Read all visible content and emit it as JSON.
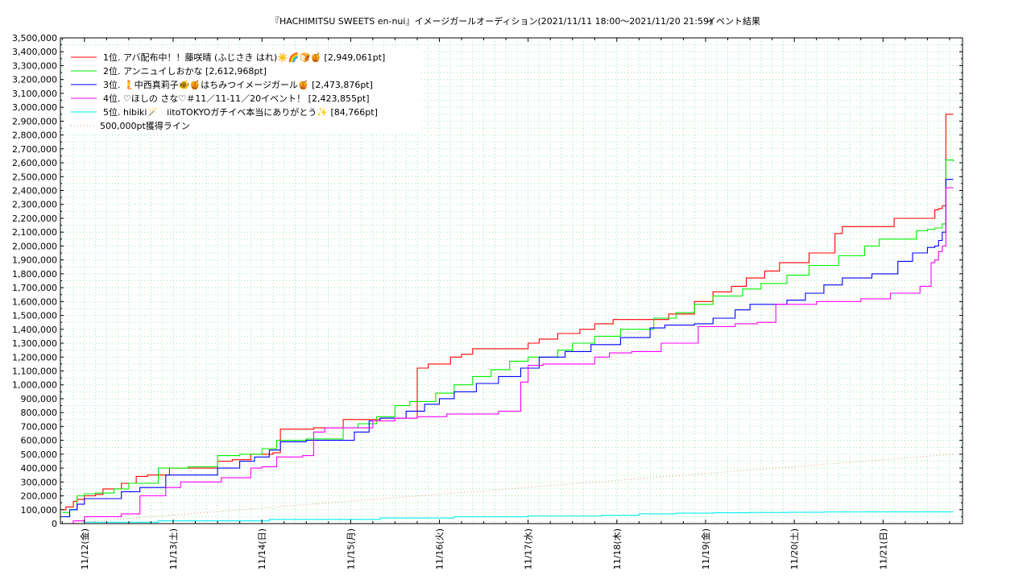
{
  "chart_data": {
    "type": "line",
    "title": "『HACHIMITSU SWEETS en-nui』イメージガールオーディション(2021/11/11 18:00〜2021/11/20 21:59)",
    "subtitle": "イベント結果",
    "xlabel": "",
    "ylabel": "",
    "x_ticks": [
      "11/12(金)",
      "11/13(土)",
      "11/14(日)",
      "11/15(月)",
      "11/16(火)",
      "11/17(水)",
      "11/18(木)",
      "11/19(金)",
      "11/20(土)",
      "11/21(日)"
    ],
    "x_range_hours": [
      -6.5,
      237.5
    ],
    "x_unit": "hours since 11/12 00:00",
    "ylim": [
      0,
      3500000
    ],
    "y_ticks": [
      "0",
      "100,000",
      "200,000",
      "300,000",
      "400,000",
      "500,000",
      "600,000",
      "700,000",
      "800,000",
      "900,000",
      "1,000,000",
      "1,100,000",
      "1,200,000",
      "1,300,000",
      "1,400,000",
      "1,500,000",
      "1,600,000",
      "1,700,000",
      "1,800,000",
      "1,900,000",
      "2,000,000",
      "2,100,000",
      "2,200,000",
      "2,300,000",
      "2,400,000",
      "2,500,000",
      "2,600,000",
      "2,700,000",
      "2,800,000",
      "2,900,000",
      "3,000,000",
      "3,100,000",
      "3,200,000",
      "3,300,000",
      "3,400,000",
      "3,500,000"
    ],
    "grid": true,
    "legend_position": "top-left",
    "series": [
      {
        "name": "1位. アバ配布中！！藤咲晴 (ふじさき はれ)☀️🌈🍞🍯 [2,949,061pt]",
        "color": "#ff0000",
        "style": "solid",
        "x": [
          -6,
          -5,
          -3,
          -2,
          0,
          3,
          5,
          10,
          14,
          17,
          23,
          30,
          36,
          40,
          45,
          51,
          53,
          62,
          70,
          73,
          78,
          80,
          90,
          93,
          99,
          102,
          105,
          120,
          123,
          128,
          134,
          138,
          143,
          150,
          158,
          165,
          170,
          175,
          179,
          184,
          188,
          190,
          196,
          200,
          203,
          205,
          210,
          219,
          225,
          228,
          230,
          231,
          232,
          233,
          235
        ],
        "y": [
          100000,
          120000,
          160000,
          175000,
          200000,
          210000,
          250000,
          290000,
          340000,
          350000,
          400000,
          400000,
          450000,
          460000,
          500000,
          510000,
          680000,
          690000,
          750000,
          750000,
          750000,
          760000,
          1120000,
          1150000,
          1200000,
          1220000,
          1260000,
          1300000,
          1330000,
          1370000,
          1400000,
          1440000,
          1470000,
          1470000,
          1510000,
          1600000,
          1670000,
          1710000,
          1770000,
          1820000,
          1880000,
          1880000,
          1950000,
          1950000,
          2090000,
          2140000,
          2140000,
          2200000,
          2200000,
          2200000,
          2260000,
          2270000,
          2290000,
          2950000,
          2950000
        ]
      },
      {
        "name": "2位. アンニュイしおかな [2,612,968pt]",
        "color": "#00ee00",
        "style": "solid",
        "x": [
          -6,
          -4,
          -2,
          0,
          3,
          8,
          12,
          20,
          28,
          36,
          42,
          48,
          52,
          60,
          70,
          74,
          79,
          84,
          88,
          95,
          100,
          105,
          110,
          115,
          120,
          128,
          132,
          138,
          145,
          154,
          160,
          165,
          170,
          178,
          183,
          190,
          196,
          204,
          211,
          215,
          221,
          225,
          228,
          230,
          232,
          233,
          235
        ],
        "y": [
          80000,
          100000,
          200000,
          215000,
          220000,
          250000,
          290000,
          400000,
          410000,
          490000,
          500000,
          540000,
          600000,
          610000,
          690000,
          720000,
          770000,
          850000,
          880000,
          940000,
          1000000,
          1060000,
          1110000,
          1170000,
          1200000,
          1250000,
          1300000,
          1350000,
          1400000,
          1480000,
          1520000,
          1580000,
          1640000,
          1690000,
          1730000,
          1790000,
          1860000,
          1930000,
          2000000,
          2050000,
          2050000,
          2110000,
          2120000,
          2130000,
          2160000,
          2620000,
          2610000
        ]
      },
      {
        "name": "3位. 🧜中西真莉子🐠🍯はちみつイメージガール🍯 [2,473,876pt]",
        "color": "#0000ff",
        "style": "solid",
        "x": [
          -6,
          -4,
          -2,
          0,
          10,
          15,
          22,
          36,
          42,
          46,
          50,
          53,
          60,
          73,
          77,
          80,
          87,
          92,
          96,
          100,
          106,
          112,
          118,
          123,
          130,
          137,
          145,
          153,
          157,
          165,
          170,
          176,
          180,
          190,
          195,
          200,
          205,
          213,
          220,
          224,
          228,
          230,
          231,
          232,
          233,
          235
        ],
        "y": [
          50000,
          100000,
          140000,
          180000,
          230000,
          260000,
          350000,
          400000,
          450000,
          480000,
          530000,
          590000,
          600000,
          660000,
          740000,
          760000,
          810000,
          860000,
          900000,
          950000,
          1010000,
          1060000,
          1120000,
          1200000,
          1240000,
          1290000,
          1340000,
          1410000,
          1430000,
          1440000,
          1480000,
          1540000,
          1580000,
          1610000,
          1660000,
          1720000,
          1770000,
          1800000,
          1890000,
          1950000,
          1990000,
          2000000,
          2040000,
          2100000,
          2480000,
          2480000
        ]
      },
      {
        "name": "4位. ♡ほしの さな♡＃11／11-11／20イベント！ [2,423,855pt]",
        "color": "#ff00ff",
        "style": "solid",
        "x": [
          -6,
          -3,
          0,
          10,
          15,
          22,
          26,
          30,
          37,
          45,
          48,
          52,
          59,
          62,
          65,
          78,
          84,
          90,
          98,
          104,
          112,
          116,
          118,
          120,
          124,
          138,
          142,
          148,
          156,
          166,
          176,
          182,
          187,
          198,
          210,
          218,
          226,
          229,
          230,
          231,
          232,
          233,
          235
        ],
        "y": [
          0,
          20000,
          50000,
          70000,
          200000,
          260000,
          300000,
          300000,
          330000,
          400000,
          410000,
          480000,
          490000,
          660000,
          690000,
          740000,
          760000,
          770000,
          790000,
          790000,
          810000,
          810000,
          1020000,
          1140000,
          1150000,
          1200000,
          1230000,
          1240000,
          1300000,
          1420000,
          1440000,
          1450000,
          1580000,
          1600000,
          1620000,
          1660000,
          1710000,
          1880000,
          1900000,
          1960000,
          2000000,
          2420000,
          2420000
        ]
      },
      {
        "name": "5位. hibiki🪄　iitoTOKYOガチイベ本当にありがとう✨ [84,766pt]",
        "color": "#00eeee",
        "style": "solid",
        "x": [
          -6,
          0,
          20,
          50,
          80,
          100,
          120,
          140,
          150,
          160,
          170,
          180,
          190,
          200,
          210,
          220,
          235
        ],
        "y": [
          0,
          10000,
          20000,
          30000,
          40000,
          50000,
          55000,
          60000,
          70000,
          75000,
          78000,
          80000,
          82000,
          84000,
          84500,
          84766,
          84766
        ]
      },
      {
        "name": "500,000pt獲得ライン",
        "color": "#d2a27a",
        "style": "dotted",
        "x": [
          -6,
          235
        ],
        "y": [
          0,
          500000
        ]
      }
    ]
  }
}
